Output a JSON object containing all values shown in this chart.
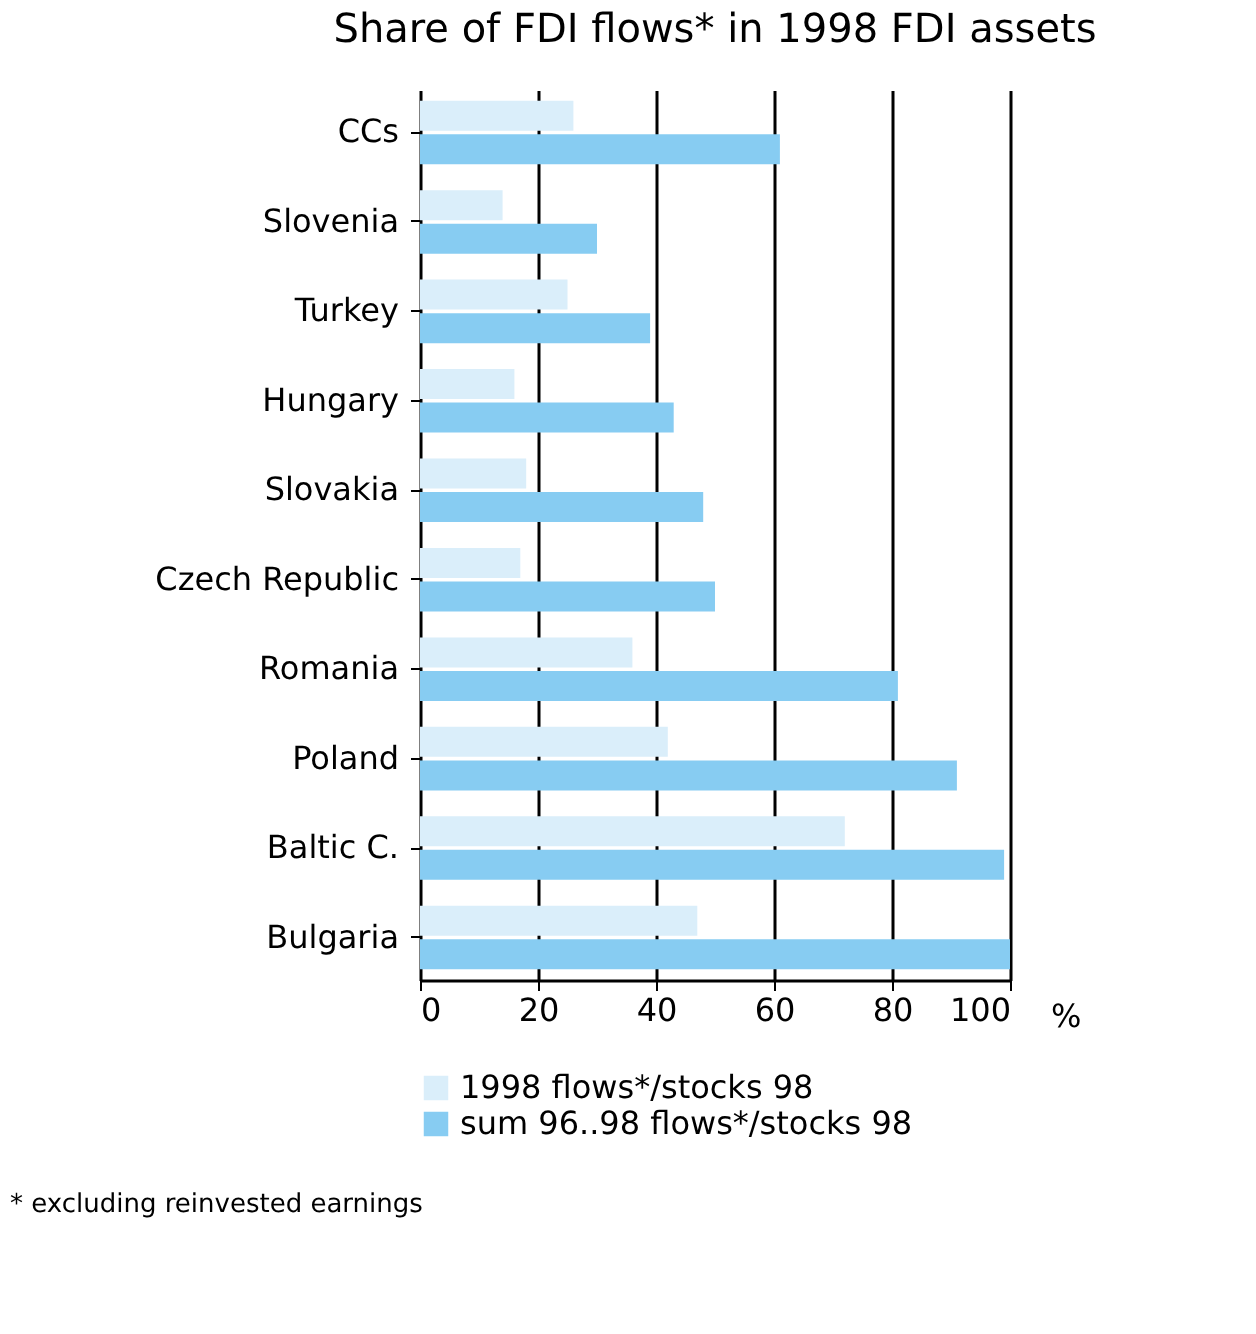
{
  "chart_data": {
    "type": "bar",
    "orientation": "horizontal",
    "title": "Share of FDI flows* in 1998 FDI assets",
    "xlabel": "%",
    "categories": [
      "CCs",
      "Slovenia",
      "Turkey",
      "Hungary",
      "Slovakia",
      "Czech Republic",
      "Romania",
      "Poland",
      "Baltic C.",
      "Bulgaria"
    ],
    "series": [
      {
        "name": "1998 flows*/stocks 98",
        "color": "#daeefa",
        "values": [
          26,
          14,
          25,
          16,
          18,
          17,
          36,
          42,
          72,
          47
        ]
      },
      {
        "name": "sum 96..98 flows*/stocks 98",
        "color": "#87ccf2",
        "values": [
          61,
          30,
          39,
          43,
          48,
          50,
          81,
          91,
          99,
          100
        ]
      }
    ],
    "xlim": [
      0,
      100
    ],
    "xticks": [
      0,
      20,
      40,
      60,
      80,
      100
    ],
    "grid": "x",
    "legend": "bottom",
    "annotations": [
      "* excluding reinvested earnings"
    ]
  }
}
